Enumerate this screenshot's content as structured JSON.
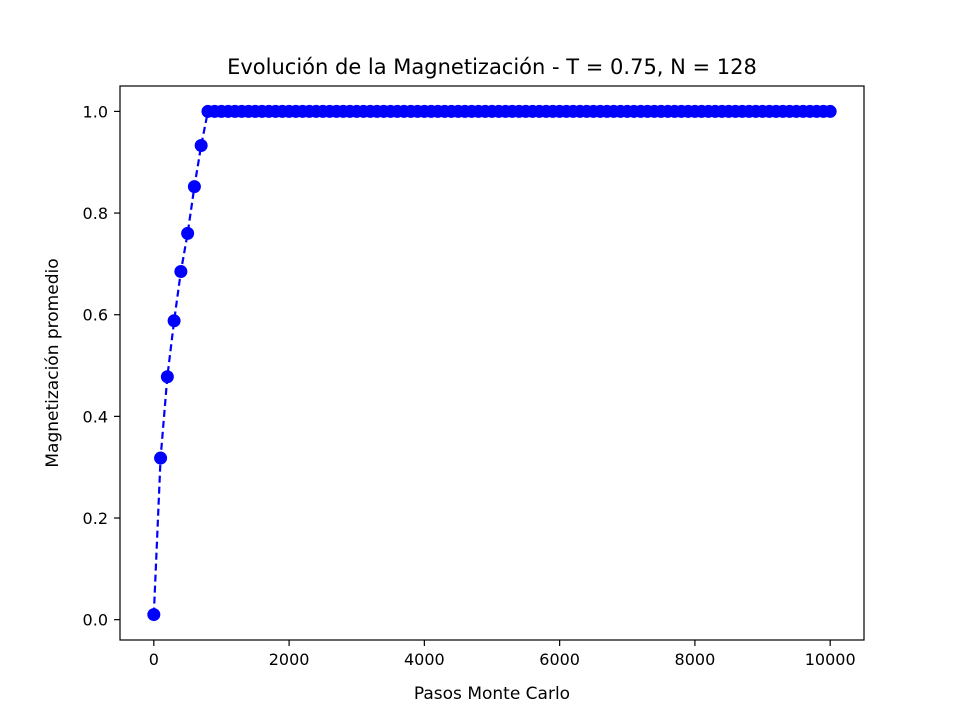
{
  "chart_data": {
    "type": "line",
    "title": "Evolución de la Magnetización - T = 0.75, N = 128",
    "xlabel": "Pasos Monte Carlo",
    "ylabel": "Magnetización promedio",
    "xlim": [
      -500,
      10500
    ],
    "ylim": [
      -0.04,
      1.05
    ],
    "x_ticks": [
      0,
      2000,
      4000,
      6000,
      8000,
      10000
    ],
    "y_ticks": [
      0.0,
      0.2,
      0.4,
      0.6,
      0.8,
      1.0
    ],
    "x_tick_labels": [
      "0",
      "2000",
      "4000",
      "6000",
      "8000",
      "10000"
    ],
    "y_tick_labels": [
      "0.0",
      "0.2",
      "0.4",
      "0.6",
      "0.8",
      "1.0"
    ],
    "grid": false,
    "series": [
      {
        "color": "#0000ff",
        "line_style": "dashed",
        "marker": "circle",
        "x": [
          0,
          100,
          200,
          300,
          400,
          500,
          600,
          700,
          800,
          900,
          1000,
          1100,
          1200,
          1300,
          1400,
          1500,
          1600,
          1700,
          1800,
          1900,
          2000,
          2100,
          2200,
          2300,
          2400,
          2500,
          2600,
          2700,
          2800,
          2900,
          3000,
          3100,
          3200,
          3300,
          3400,
          3500,
          3600,
          3700,
          3800,
          3900,
          4000,
          4100,
          4200,
          4300,
          4400,
          4500,
          4600,
          4700,
          4800,
          4900,
          5000,
          5100,
          5200,
          5300,
          5400,
          5500,
          5600,
          5700,
          5800,
          5900,
          6000,
          6100,
          6200,
          6300,
          6400,
          6500,
          6600,
          6700,
          6800,
          6900,
          7000,
          7100,
          7200,
          7300,
          7400,
          7500,
          7600,
          7700,
          7800,
          7900,
          8000,
          8100,
          8200,
          8300,
          8400,
          8500,
          8600,
          8700,
          8800,
          8900,
          9000,
          9100,
          9200,
          9300,
          9400,
          9500,
          9600,
          9700,
          9800,
          9900,
          10000
        ],
        "values": [
          0.01,
          0.318,
          0.478,
          0.588,
          0.685,
          0.76,
          0.852,
          0.933,
          1.0,
          1.0,
          1.0,
          1.0,
          1.0,
          1.0,
          1.0,
          1.0,
          1.0,
          1.0,
          1.0,
          1.0,
          1.0,
          1.0,
          1.0,
          1.0,
          1.0,
          1.0,
          1.0,
          1.0,
          1.0,
          1.0,
          1.0,
          1.0,
          1.0,
          1.0,
          1.0,
          1.0,
          1.0,
          1.0,
          1.0,
          1.0,
          1.0,
          1.0,
          1.0,
          1.0,
          1.0,
          1.0,
          1.0,
          1.0,
          1.0,
          1.0,
          1.0,
          1.0,
          1.0,
          1.0,
          1.0,
          1.0,
          1.0,
          1.0,
          1.0,
          1.0,
          1.0,
          1.0,
          1.0,
          1.0,
          1.0,
          1.0,
          1.0,
          1.0,
          1.0,
          1.0,
          1.0,
          1.0,
          1.0,
          1.0,
          1.0,
          1.0,
          1.0,
          1.0,
          1.0,
          1.0,
          1.0,
          1.0,
          1.0,
          1.0,
          1.0,
          1.0,
          1.0,
          1.0,
          1.0,
          1.0,
          1.0,
          1.0,
          1.0,
          1.0,
          1.0,
          1.0,
          1.0,
          1.0,
          1.0,
          1.0,
          1.0
        ]
      }
    ]
  }
}
